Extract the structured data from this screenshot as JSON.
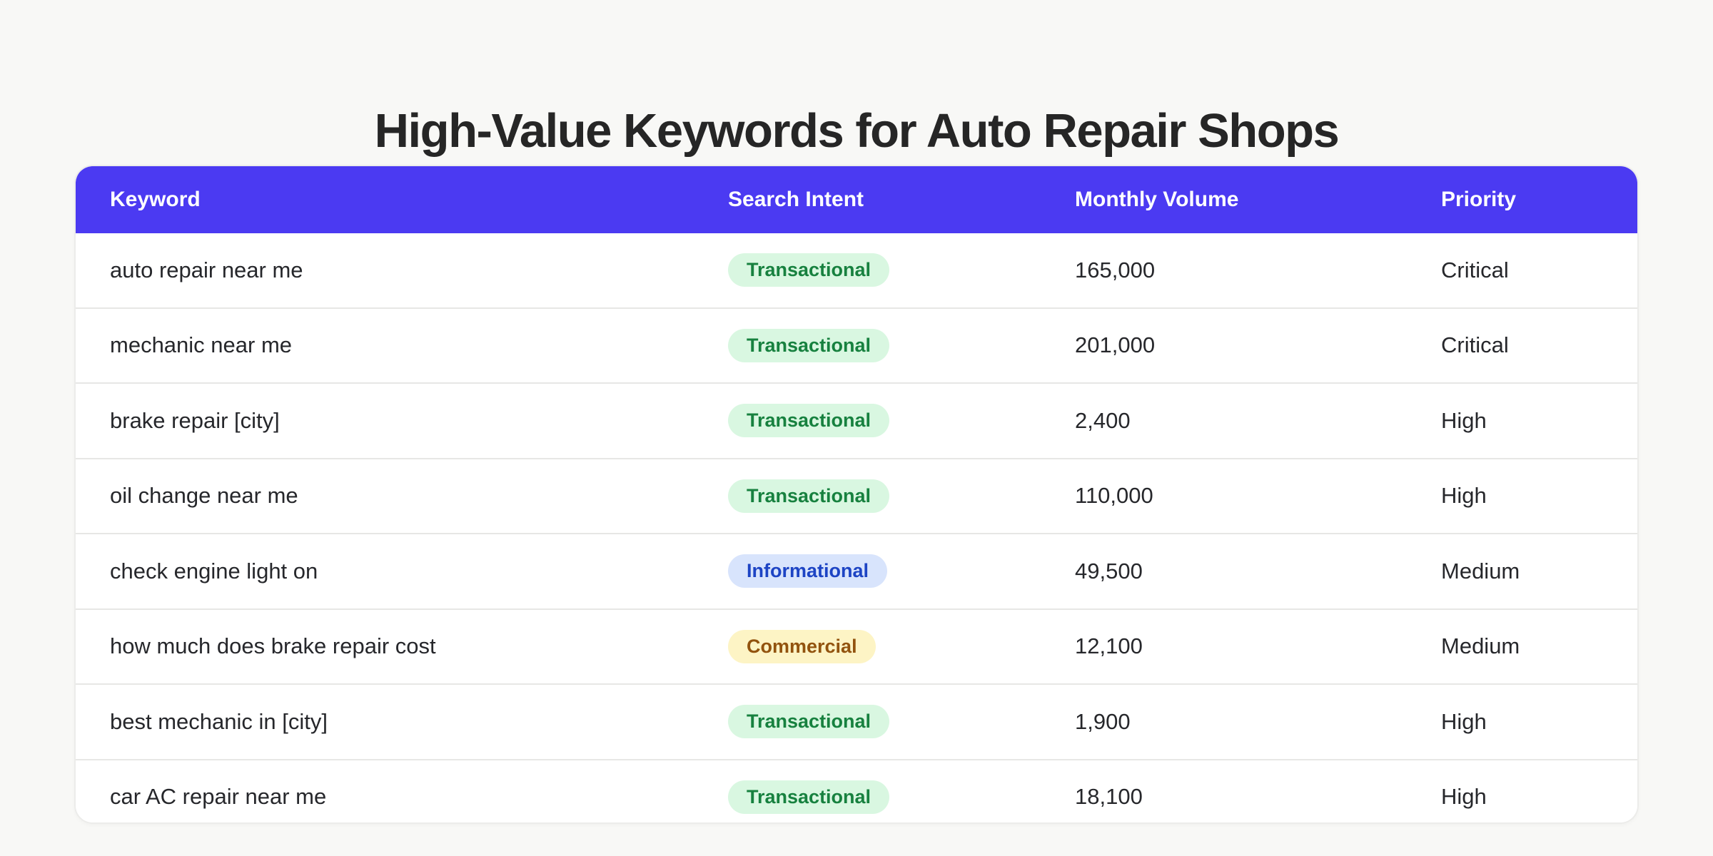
{
  "page": {
    "title": "High-Value Keywords for Auto Repair Shops",
    "background_color": "#f8f8f6"
  },
  "table": {
    "header_bg_color": "#4b3af2",
    "header_text_color": "#ffffff",
    "columns": [
      {
        "key": "keyword",
        "label": "Keyword"
      },
      {
        "key": "intent",
        "label": "Search Intent"
      },
      {
        "key": "volume",
        "label": "Monthly Volume"
      },
      {
        "key": "priority",
        "label": "Priority"
      }
    ],
    "intent_styles": {
      "Transactional": {
        "bg": "#d9f7e1",
        "text": "#17813f"
      },
      "Informational": {
        "bg": "#d8e4fc",
        "text": "#1d44c4"
      },
      "Commercial": {
        "bg": "#fdf4c5",
        "text": "#92530e"
      }
    },
    "rows": [
      {
        "keyword": "auto repair near me",
        "intent": "Transactional",
        "volume": "165,000",
        "priority": "Critical"
      },
      {
        "keyword": "mechanic near me",
        "intent": "Transactional",
        "volume": "201,000",
        "priority": "Critical"
      },
      {
        "keyword": "brake repair [city]",
        "intent": "Transactional",
        "volume": "2,400",
        "priority": "High"
      },
      {
        "keyword": "oil change near me",
        "intent": "Transactional",
        "volume": "110,000",
        "priority": "High"
      },
      {
        "keyword": "check engine light on",
        "intent": "Informational",
        "volume": "49,500",
        "priority": "Medium"
      },
      {
        "keyword": "how much does brake repair cost",
        "intent": "Commercial",
        "volume": "12,100",
        "priority": "Medium"
      },
      {
        "keyword": "best mechanic in [city]",
        "intent": "Transactional",
        "volume": "1,900",
        "priority": "High"
      },
      {
        "keyword": "car AC repair near me",
        "intent": "Transactional",
        "volume": "18,100",
        "priority": "High"
      }
    ]
  },
  "chart_data": {
    "type": "table",
    "title": "High-Value Keywords for Auto Repair Shops",
    "columns": [
      "Keyword",
      "Search Intent",
      "Monthly Volume",
      "Priority"
    ],
    "rows": [
      [
        "auto repair near me",
        "Transactional",
        165000,
        "Critical"
      ],
      [
        "mechanic near me",
        "Transactional",
        201000,
        "Critical"
      ],
      [
        "brake repair [city]",
        "Transactional",
        2400,
        "High"
      ],
      [
        "oil change near me",
        "Transactional",
        110000,
        "High"
      ],
      [
        "check engine light on",
        "Informational",
        49500,
        "Medium"
      ],
      [
        "how much does brake repair cost",
        "Commercial",
        12100,
        "Medium"
      ],
      [
        "best mechanic in [city]",
        "Transactional",
        1900,
        "High"
      ],
      [
        "car AC repair near me",
        "Transactional",
        18100,
        "High"
      ]
    ]
  }
}
